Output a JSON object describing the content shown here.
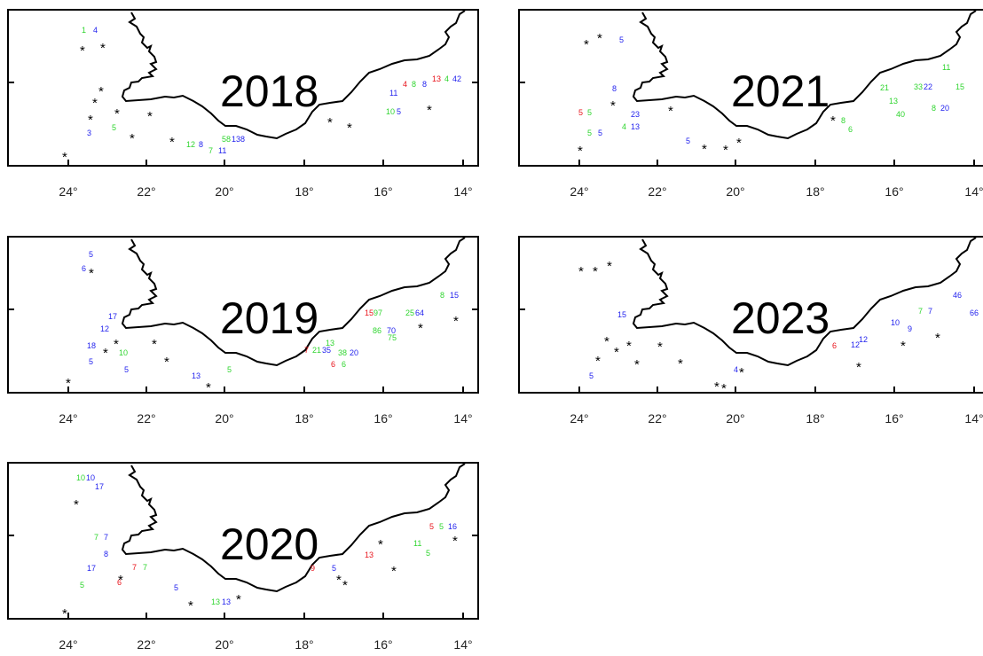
{
  "colors": {
    "red": "#e8131b",
    "green": "#2fd52f",
    "blue": "#2323ee",
    "black": "#000000"
  },
  "x_tick_labels": [
    "24°",
    "22°",
    "20°",
    "18°",
    "16°",
    "14°"
  ],
  "panels": [
    {
      "year": "2018",
      "labels": [
        {
          "t": "1",
          "c": "green"
        },
        {
          "t": "4",
          "c": "blue"
        },
        {
          "t": "3",
          "c": "blue"
        },
        {
          "t": "5",
          "c": "green"
        },
        {
          "t": "12",
          "c": "green"
        },
        {
          "t": "8",
          "c": "blue"
        },
        {
          "t": "7",
          "c": "green"
        },
        {
          "t": "11",
          "c": "blue"
        },
        {
          "t": "58",
          "c": "green"
        },
        {
          "t": "138",
          "c": "blue"
        },
        {
          "t": "4",
          "c": "red"
        },
        {
          "t": "8",
          "c": "green"
        },
        {
          "t": "8",
          "c": "blue"
        },
        {
          "t": "13",
          "c": "red"
        },
        {
          "t": "4",
          "c": "green"
        },
        {
          "t": "42",
          "c": "blue"
        },
        {
          "t": "11",
          "c": "blue"
        },
        {
          "t": "10",
          "c": "green"
        },
        {
          "t": "5",
          "c": "blue"
        }
      ]
    },
    {
      "year": "2021",
      "labels": [
        {
          "t": "5",
          "c": "blue"
        },
        {
          "t": "8",
          "c": "blue"
        },
        {
          "t": "5",
          "c": "red"
        },
        {
          "t": "5",
          "c": "green"
        },
        {
          "t": "23",
          "c": "blue"
        },
        {
          "t": "4",
          "c": "green"
        },
        {
          "t": "13",
          "c": "blue"
        },
        {
          "t": "5",
          "c": "green"
        },
        {
          "t": "5",
          "c": "blue"
        },
        {
          "t": "5",
          "c": "blue"
        },
        {
          "t": "8",
          "c": "green"
        },
        {
          "t": "6",
          "c": "green"
        },
        {
          "t": "21",
          "c": "green"
        },
        {
          "t": "13",
          "c": "green"
        },
        {
          "t": "40",
          "c": "green"
        },
        {
          "t": "33",
          "c": "green"
        },
        {
          "t": "22",
          "c": "blue"
        },
        {
          "t": "11",
          "c": "green"
        },
        {
          "t": "15",
          "c": "green"
        },
        {
          "t": "8",
          "c": "green"
        },
        {
          "t": "20",
          "c": "blue"
        }
      ]
    },
    {
      "year": "2019",
      "labels": [
        {
          "t": "5",
          "c": "blue"
        },
        {
          "t": "6",
          "c": "blue"
        },
        {
          "t": "17",
          "c": "blue"
        },
        {
          "t": "12",
          "c": "blue"
        },
        {
          "t": "18",
          "c": "blue"
        },
        {
          "t": "10",
          "c": "green"
        },
        {
          "t": "5",
          "c": "blue"
        },
        {
          "t": "5",
          "c": "blue"
        },
        {
          "t": "13",
          "c": "blue"
        },
        {
          "t": "5",
          "c": "green"
        },
        {
          "t": "7",
          "c": "red"
        },
        {
          "t": "21",
          "c": "green"
        },
        {
          "t": "35",
          "c": "blue"
        },
        {
          "t": "13",
          "c": "green"
        },
        {
          "t": "38",
          "c": "green"
        },
        {
          "t": "20",
          "c": "blue"
        },
        {
          "t": "6",
          "c": "red"
        },
        {
          "t": "6",
          "c": "green"
        },
        {
          "t": "15",
          "c": "red"
        },
        {
          "t": "97",
          "c": "green"
        },
        {
          "t": "86",
          "c": "green"
        },
        {
          "t": "70",
          "c": "blue"
        },
        {
          "t": "75",
          "c": "green"
        },
        {
          "t": "25",
          "c": "green"
        },
        {
          "t": "64",
          "c": "blue"
        },
        {
          "t": "8",
          "c": "green"
        },
        {
          "t": "15",
          "c": "blue"
        }
      ]
    },
    {
      "year": "2023",
      "labels": [
        {
          "t": "15",
          "c": "blue"
        },
        {
          "t": "5",
          "c": "blue"
        },
        {
          "t": "4",
          "c": "blue"
        },
        {
          "t": "6",
          "c": "red"
        },
        {
          "t": "12",
          "c": "blue"
        },
        {
          "t": "12",
          "c": "blue"
        },
        {
          "t": "10",
          "c": "blue"
        },
        {
          "t": "9",
          "c": "blue"
        },
        {
          "t": "7",
          "c": "green"
        },
        {
          "t": "7",
          "c": "blue"
        },
        {
          "t": "46",
          "c": "blue"
        },
        {
          "t": "66",
          "c": "blue"
        }
      ]
    },
    {
      "year": "2020",
      "labels": [
        {
          "t": "10",
          "c": "green"
        },
        {
          "t": "10",
          "c": "blue"
        },
        {
          "t": "17",
          "c": "blue"
        },
        {
          "t": "7",
          "c": "green"
        },
        {
          "t": "7",
          "c": "blue"
        },
        {
          "t": "8",
          "c": "blue"
        },
        {
          "t": "17",
          "c": "blue"
        },
        {
          "t": "7",
          "c": "red"
        },
        {
          "t": "7",
          "c": "green"
        },
        {
          "t": "6",
          "c": "red"
        },
        {
          "t": "5",
          "c": "green"
        },
        {
          "t": "5",
          "c": "blue"
        },
        {
          "t": "13",
          "c": "green"
        },
        {
          "t": "13",
          "c": "blue"
        },
        {
          "t": "9",
          "c": "red"
        },
        {
          "t": "5",
          "c": "blue"
        },
        {
          "t": "13",
          "c": "red"
        },
        {
          "t": "11",
          "c": "green"
        },
        {
          "t": "5",
          "c": "green"
        },
        {
          "t": "5",
          "c": "red"
        },
        {
          "t": "5",
          "c": "green"
        },
        {
          "t": "16",
          "c": "blue"
        }
      ]
    }
  ]
}
